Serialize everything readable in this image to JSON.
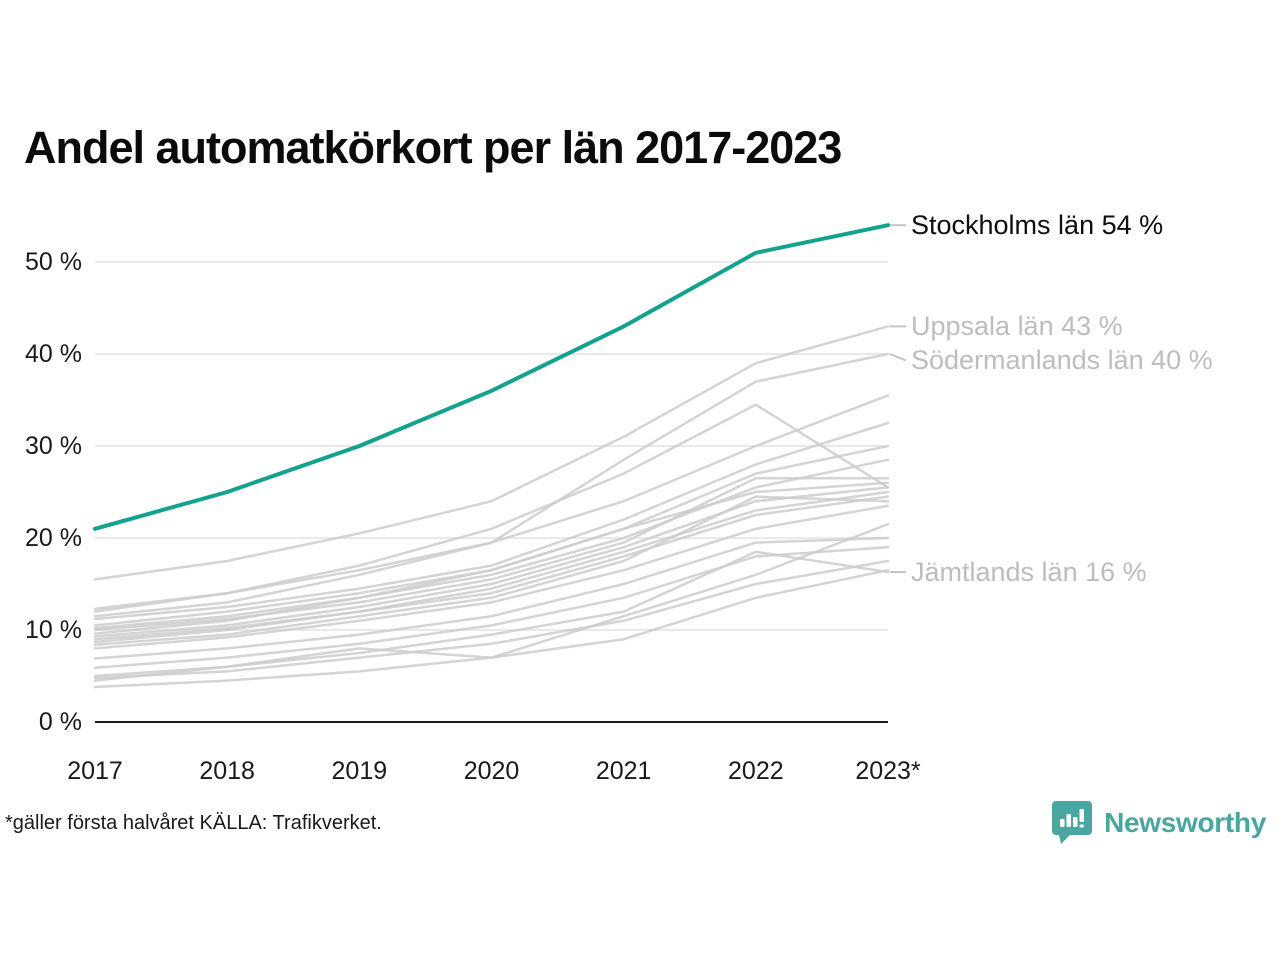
{
  "title": "Andel automatkörkort per län 2017-2023",
  "footnote": "*gäller första halvåret KÄLLA: Trafikverket.",
  "branding": {
    "logo_text": "Newsworthy",
    "logo_icon": "bar-chart-speech-bubble",
    "logo_color": "#4aa6a0"
  },
  "chart_data": {
    "type": "line",
    "title": "Andel automatkörkort per län 2017-2023",
    "xlabel": "",
    "ylabel": "",
    "unit": "%",
    "x_labels": [
      "2017",
      "2018",
      "2019",
      "2020",
      "2021",
      "2022",
      "2023*"
    ],
    "y_ticks": [
      {
        "label": "0 %",
        "value": 0
      },
      {
        "label": "10 %",
        "value": 10
      },
      {
        "label": "20 %",
        "value": 20
      },
      {
        "label": "30 %",
        "value": 30
      },
      {
        "label": "40 %",
        "value": 40
      },
      {
        "label": "50 %",
        "value": 50
      }
    ],
    "ylim": [
      0,
      56
    ],
    "grid": "horizontal",
    "legend_position": "right-annotations",
    "colors": {
      "highlight_line": "#12a28e",
      "gray_line": "#cdcdcd",
      "gridline": "#e9e9e9",
      "axis_line": "#1a1a1a",
      "emphasized_label": "#0f0f0f",
      "muted_label": "#bdbdbd",
      "leader": "#c4c4c4"
    },
    "series": [
      {
        "name": "Stockholms län",
        "highlight": true,
        "values": [
          21,
          25,
          30,
          36,
          43,
          51,
          54
        ]
      },
      {
        "name": "Uppsala län",
        "highlight": false,
        "values": [
          15.5,
          17.5,
          20.5,
          24,
          31,
          39,
          43
        ]
      },
      {
        "name": "Södermanlands län",
        "highlight": false,
        "values": [
          12.3,
          14,
          16.5,
          19.5,
          28.5,
          37,
          40
        ]
      },
      {
        "name": null,
        "highlight": false,
        "values": [
          11.5,
          13,
          16,
          19.5,
          24,
          30,
          35.5
        ]
      },
      {
        "name": null,
        "highlight": false,
        "values": [
          11.2,
          12.5,
          14.5,
          17,
          22,
          28,
          32.5
        ]
      },
      {
        "name": null,
        "highlight": false,
        "values": [
          12,
          14,
          17,
          21,
          27,
          34.5,
          25.5
        ]
      },
      {
        "name": null,
        "highlight": false,
        "values": [
          10.5,
          12,
          14,
          16.5,
          21,
          27,
          30
        ]
      },
      {
        "name": null,
        "highlight": false,
        "values": [
          10.2,
          11.5,
          13.5,
          16,
          20,
          25.5,
          28.5
        ]
      },
      {
        "name": null,
        "highlight": false,
        "values": [
          10,
          11.2,
          13,
          15.5,
          19.5,
          26.5,
          26.5
        ]
      },
      {
        "name": null,
        "highlight": false,
        "values": [
          9.6,
          11,
          13.5,
          16.5,
          21,
          25,
          26
        ]
      },
      {
        "name": null,
        "highlight": false,
        "values": [
          9.3,
          10.5,
          12.5,
          15,
          19,
          24,
          25.5
        ]
      },
      {
        "name": null,
        "highlight": false,
        "values": [
          9,
          10.2,
          12,
          14.5,
          18.5,
          23,
          25
        ]
      },
      {
        "name": null,
        "highlight": false,
        "values": [
          8.7,
          10,
          12,
          14,
          18,
          22.5,
          24.5
        ]
      },
      {
        "name": null,
        "highlight": false,
        "values": [
          8.4,
          9.5,
          11.5,
          13.5,
          17.5,
          24.5,
          24
        ]
      },
      {
        "name": null,
        "highlight": false,
        "values": [
          8,
          9.2,
          11,
          13,
          16.5,
          21,
          23.5
        ]
      },
      {
        "name": null,
        "highlight": false,
        "values": [
          6.9,
          8,
          9.5,
          11.5,
          15,
          19.5,
          20
        ]
      },
      {
        "name": null,
        "highlight": false,
        "values": [
          5.9,
          7,
          8.5,
          10.5,
          13.5,
          18,
          19
        ]
      },
      {
        "name": "Jämtlands län",
        "highlight": false,
        "values": [
          5,
          6,
          7.5,
          9.5,
          12,
          18.5,
          16.3
        ]
      },
      {
        "name": null,
        "highlight": false,
        "values": [
          4.8,
          5.5,
          7,
          8.5,
          11,
          15,
          17.5
        ]
      },
      {
        "name": null,
        "highlight": false,
        "values": [
          4.5,
          6,
          8,
          7,
          11.5,
          16,
          21.5
        ]
      },
      {
        "name": null,
        "highlight": false,
        "values": [
          3.8,
          4.5,
          5.5,
          7,
          9,
          13.5,
          16.5
        ]
      }
    ],
    "annotations": [
      {
        "text": "Stockholms län 54 %",
        "value": 54,
        "emphasized": true
      },
      {
        "text": "Uppsala län 43 %",
        "value": 43,
        "emphasized": false
      },
      {
        "text": "Södermanlands län 40 %",
        "value": 40,
        "emphasized": false
      },
      {
        "text": "Jämtlands län 16 %",
        "value": 16.3,
        "emphasized": false
      }
    ]
  }
}
